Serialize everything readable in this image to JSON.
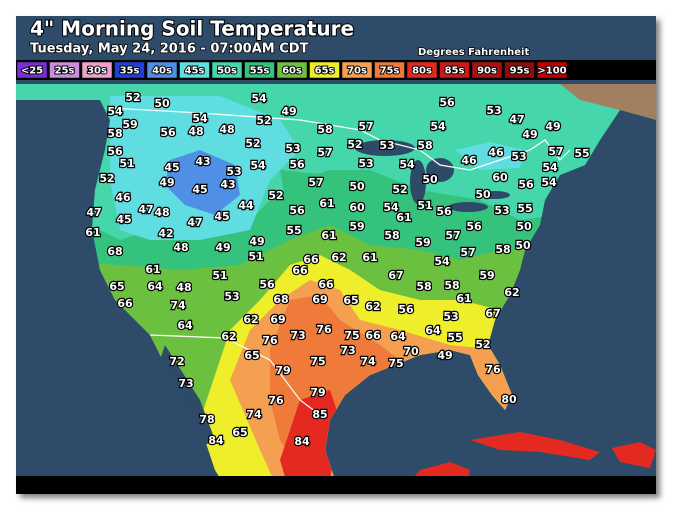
{
  "header": {
    "title": "4\" Morning Soil Temperature",
    "subtitle": "Tuesday, May 24, 2016 - 07:00AM CDT",
    "units": "Degrees Fahrenheit"
  },
  "legend": [
    {
      "label": "<25",
      "color": "#7a2fd6"
    },
    {
      "label": "25s",
      "color": "#c98ee0"
    },
    {
      "label": "30s",
      "color": "#f0a0d0"
    },
    {
      "label": "35s",
      "color": "#2040d8"
    },
    {
      "label": "40s",
      "color": "#4f8fe6"
    },
    {
      "label": "45s",
      "color": "#5fdde0"
    },
    {
      "label": "50s",
      "color": "#45d6ac"
    },
    {
      "label": "55s",
      "color": "#34c27c"
    },
    {
      "label": "60s",
      "color": "#6cc040"
    },
    {
      "label": "65s",
      "color": "#eeee2a"
    },
    {
      "label": "70s",
      "color": "#f5a050"
    },
    {
      "label": "75s",
      "color": "#f07a3a"
    },
    {
      "label": "80s",
      "color": "#e42a20"
    },
    {
      "label": "85s",
      "color": "#c81c18"
    },
    {
      "label": "90s",
      "color": "#a81212"
    },
    {
      "label": "95s",
      "color": "#8a0e0e"
    },
    {
      "label": ">100",
      "color": "#c00000"
    }
  ],
  "stations": [
    52,
    50,
    54,
    56,
    53,
    47,
    49,
    54,
    59,
    54,
    52,
    49,
    58,
    57,
    54,
    58,
    56,
    48,
    48,
    49,
    56,
    52,
    53,
    57,
    52,
    53,
    58,
    46,
    53,
    57,
    55,
    51,
    45,
    43,
    53,
    54,
    56,
    53,
    54,
    46,
    54,
    52,
    49,
    45,
    43,
    57,
    50,
    52,
    50,
    60,
    56,
    54,
    46,
    52,
    50,
    47,
    45,
    47,
    48,
    44,
    56,
    61,
    60,
    54,
    51,
    56,
    53,
    55,
    61,
    47,
    45,
    61,
    56,
    50,
    42,
    55,
    61,
    59,
    58,
    57,
    68,
    48,
    49,
    49,
    59,
    58,
    50,
    51,
    66,
    62,
    61,
    54,
    57,
    61,
    66,
    51,
    67,
    59,
    65,
    64,
    48,
    56,
    66,
    58,
    58,
    66,
    74,
    53,
    68,
    69,
    65,
    62,
    61,
    62,
    64,
    62,
    69,
    76,
    56,
    53,
    67,
    62,
    76,
    73,
    66,
    75,
    64,
    64,
    55,
    65,
    73,
    52,
    72,
    75,
    74,
    75,
    70,
    49,
    73,
    79,
    76,
    79,
    80,
    76,
    85,
    78,
    74,
    84,
    65,
    84
  ]
}
